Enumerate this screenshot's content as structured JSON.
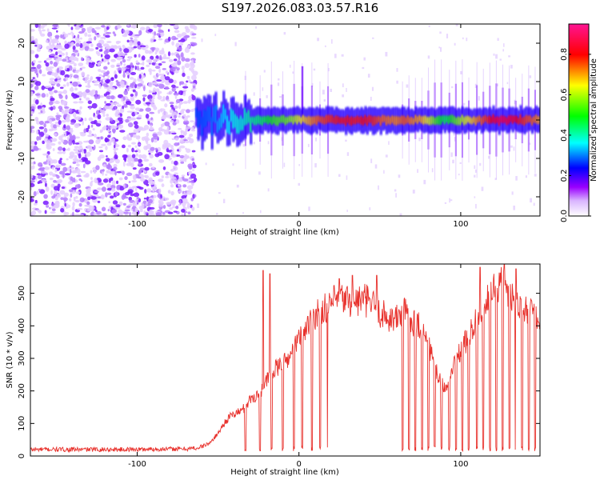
{
  "page": {
    "title": "S197.2026.083.03.57.R16"
  },
  "chart_data": [
    {
      "type": "heatmap",
      "title": "S197.2026.083.03.57.R16",
      "xlabel": "Height of straight line (km)",
      "ylabel": "Frequency (Hz)",
      "xlim": [
        -166,
        149
      ],
      "ylim": [
        -25,
        25
      ],
      "xticks": [
        -100,
        0,
        100
      ],
      "xtick_labels": [
        "-100",
        "0",
        "100"
      ],
      "yticks": [
        -20,
        -10,
        0,
        10,
        20
      ],
      "ytick_labels": [
        "-20",
        "-10",
        "0",
        "10",
        "20"
      ],
      "noise_region_xlim": [
        -166,
        -64
      ],
      "signal_onset_x": -64,
      "carrier_frequency_hz": 0,
      "grid": false,
      "colorbar": {
        "label": "Normalized spectral amplitude",
        "range": [
          0.0,
          0.95
        ],
        "ticks": [
          0.0,
          0.2,
          0.4,
          0.6,
          0.8
        ],
        "tick_labels": [
          "0.0",
          "0.2",
          "0.4",
          "0.6",
          "0.8"
        ],
        "colormap": [
          "#ffffff",
          "#9a00ff",
          "#0000ff",
          "#00ffff",
          "#00ff00",
          "#ffff00",
          "#ff0000",
          "#ff00aa"
        ]
      }
    },
    {
      "type": "line",
      "xlabel": "Height of straight line (km)",
      "ylabel": "SNR (10 * v/v)",
      "xlim": [
        -166,
        149
      ],
      "ylim": [
        0,
        590
      ],
      "xticks": [
        -100,
        0,
        100
      ],
      "xtick_labels": [
        "-100",
        "0",
        "100"
      ],
      "yticks": [
        0,
        100,
        200,
        300,
        400,
        500
      ],
      "ytick_labels": [
        "0",
        "100",
        "200",
        "300",
        "400",
        "500"
      ],
      "color": "#e8322d",
      "grid": false,
      "series": [
        {
          "name": "SNR",
          "x": [
            -166,
            -150,
            -130,
            -110,
            -90,
            -70,
            -62,
            -55,
            -50,
            -45,
            -40,
            -35,
            -30,
            -25,
            -20,
            -15,
            -10,
            -5,
            0,
            5,
            10,
            15,
            20,
            25,
            30,
            35,
            40,
            45,
            50,
            55,
            60,
            65,
            70,
            75,
            80,
            85,
            90,
            95,
            100,
            105,
            110,
            115,
            120,
            125,
            130,
            135,
            140,
            145,
            149
          ],
          "values": [
            20,
            20,
            20,
            20,
            21,
            22,
            25,
            40,
            70,
            110,
            130,
            140,
            175,
            190,
            230,
            265,
            280,
            310,
            360,
            400,
            435,
            455,
            470,
            480,
            480,
            475,
            480,
            470,
            440,
            425,
            420,
            445,
            415,
            400,
            345,
            255,
            205,
            270,
            325,
            370,
            420,
            460,
            505,
            525,
            510,
            480,
            455,
            430,
            400
          ],
          "dropouts_x": [
            -33,
            -24,
            -17,
            -10,
            -3,
            2,
            8,
            13,
            18,
            64,
            68,
            72,
            76,
            80,
            84,
            88,
            93,
            97,
            101,
            105,
            110,
            114,
            118,
            122,
            126,
            130,
            134,
            138,
            142,
            146
          ],
          "dropout_floor": 15,
          "spikes": [
            {
              "x": -22,
              "value": 570
            },
            {
              "x": -18,
              "value": 560
            },
            {
              "x": 18,
              "value": 440
            },
            {
              "x": 25,
              "value": 545
            },
            {
              "x": 33,
              "value": 555
            },
            {
              "x": 48,
              "value": 555
            },
            {
              "x": 112,
              "value": 580
            },
            {
              "x": 127,
              "value": 588
            },
            {
              "x": 134,
              "value": 575
            }
          ]
        }
      ]
    }
  ]
}
